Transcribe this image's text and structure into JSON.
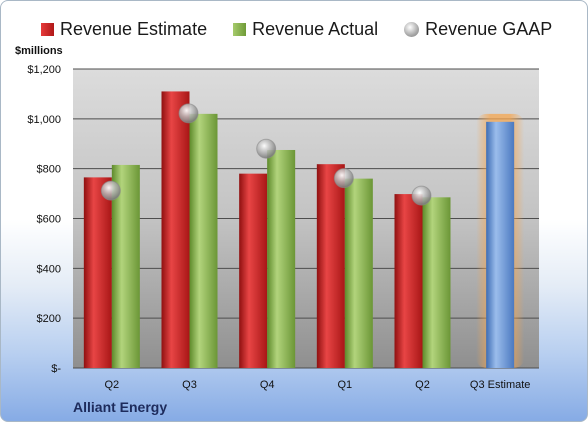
{
  "chart_data": {
    "type": "bar",
    "ylabel": "$millions",
    "ylim": [
      0,
      1200
    ],
    "yticks": [
      {
        "value": 0,
        "label": "$-"
      },
      {
        "value": 200,
        "label": "$200"
      },
      {
        "value": 400,
        "label": "$400"
      },
      {
        "value": 600,
        "label": "$600"
      },
      {
        "value": 800,
        "label": "$800"
      },
      {
        "value": 1000,
        "label": "$1,000"
      },
      {
        "value": 1200,
        "label": "$1,200"
      }
    ],
    "categories": [
      "Q2",
      "Q3",
      "Q4",
      "Q1",
      "Q2",
      "Q3 Estimate"
    ],
    "legend_position": "top",
    "grid": true,
    "series": [
      {
        "name": "Revenue Estimate",
        "type": "bar",
        "color": "#c62828",
        "values": [
          765,
          1110,
          780,
          818,
          698,
          null
        ]
      },
      {
        "name": "Revenue Actual",
        "type": "bar",
        "color": "#8ab44f",
        "values": [
          815,
          1020,
          875,
          760,
          685,
          null
        ]
      },
      {
        "name": "Revenue GAAP",
        "type": "marker",
        "color": "#9e9e9e",
        "values": [
          712,
          1022,
          880,
          762,
          692,
          null
        ]
      }
    ],
    "forecast": {
      "category": "Q3 Estimate",
      "value": 988,
      "color": "#6d96d6",
      "highlight_color": "#f5a650"
    }
  },
  "footer": {
    "company": "Alliant Energy"
  }
}
